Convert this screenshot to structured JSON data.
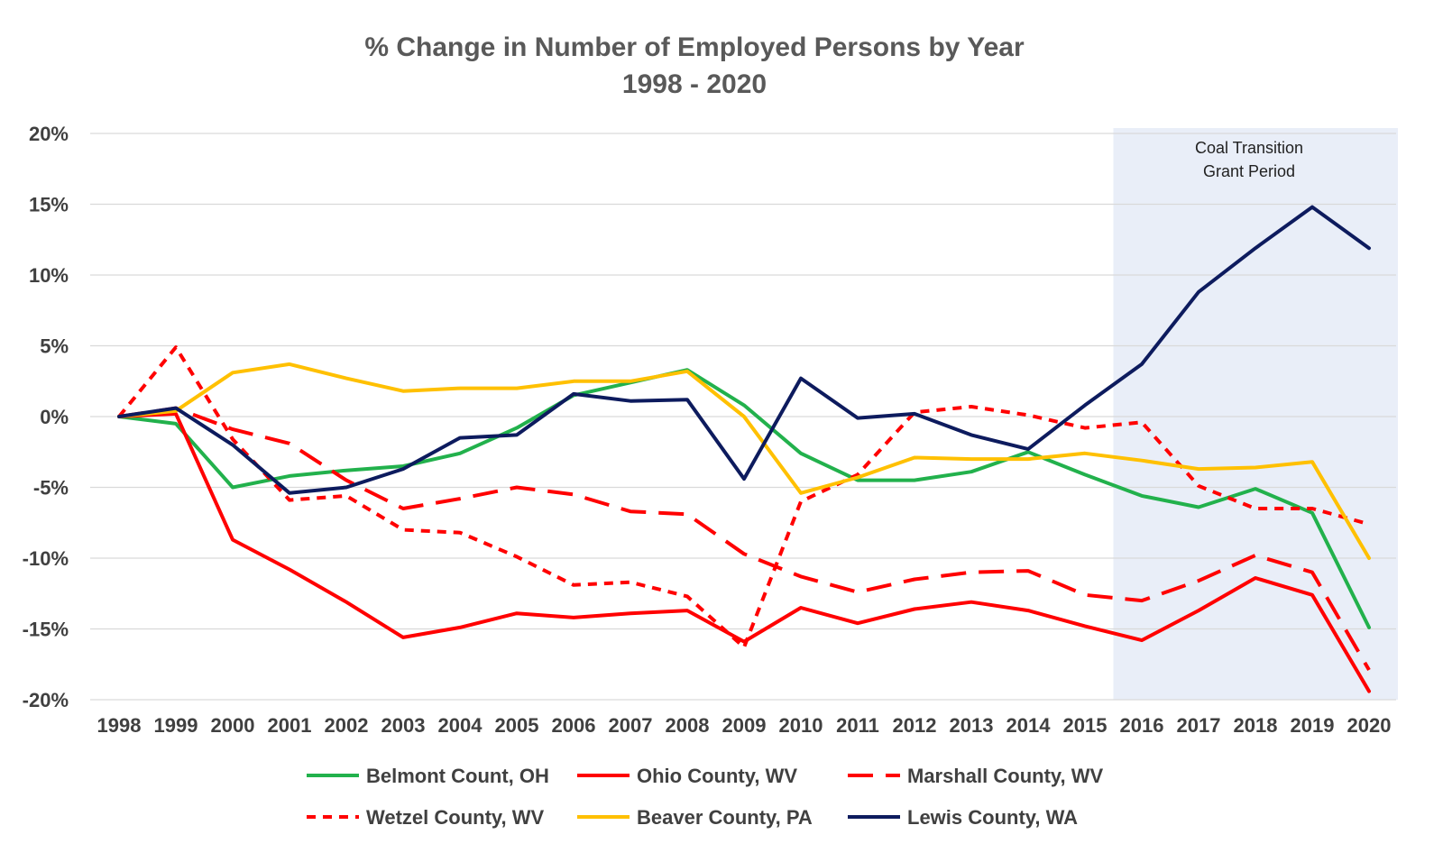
{
  "chart_data": {
    "type": "line",
    "title": "% Change in Number of Employed Persons by Year",
    "subtitle": "1998 - 2020",
    "xlabel": "",
    "ylabel": "",
    "ylim": [
      -20,
      20
    ],
    "yticks": [
      20,
      15,
      10,
      5,
      0,
      -5,
      -10,
      -15,
      -20
    ],
    "ytick_labels": [
      "20%",
      "15%",
      "10%",
      "5%",
      "0%",
      "-5%",
      "-10%",
      "-15%",
      "-20%"
    ],
    "grid": true,
    "legend_position": "bottom",
    "categories": [
      "1998",
      "1999",
      "2000",
      "2001",
      "2002",
      "2003",
      "2004",
      "2005",
      "2006",
      "2007",
      "2008",
      "2009",
      "2010",
      "2011",
      "2012",
      "2013",
      "2014",
      "2015",
      "2016",
      "2017",
      "2018",
      "2019",
      "2020"
    ],
    "shaded_region": {
      "from": "2015.5",
      "to": "2020",
      "label_line1": "Coal Transition",
      "label_line2": "Grant Period",
      "color": "#e9eef8"
    },
    "series": [
      {
        "name": "Belmont Count, OH",
        "color": "#22b14c",
        "dash": "solid",
        "values": [
          0,
          -0.5,
          -5.0,
          -4.2,
          -3.8,
          -3.5,
          -2.6,
          -0.8,
          1.5,
          2.4,
          3.3,
          0.8,
          -2.6,
          -4.5,
          -4.5,
          -3.9,
          -2.5,
          -4.1,
          -5.6,
          -6.4,
          -5.1,
          -6.8,
          -14.9
        ]
      },
      {
        "name": "Ohio County, WV",
        "color": "#ff0000",
        "dash": "solid",
        "values": [
          0,
          0.2,
          -8.7,
          -10.8,
          -13.1,
          -15.6,
          -14.9,
          -13.9,
          -14.2,
          -13.9,
          -13.7,
          -15.9,
          -13.5,
          -14.6,
          -13.6,
          -13.1,
          -13.7,
          -14.8,
          -15.8,
          -13.7,
          -11.4,
          -12.6,
          -19.4
        ]
      },
      {
        "name": "Marshall County, WV",
        "color": "#ff0000",
        "dash": "long",
        "values": [
          0,
          0.6,
          -0.9,
          -1.9,
          -4.5,
          -6.5,
          -5.8,
          -5.0,
          -5.5,
          -6.7,
          -6.9,
          -9.7,
          -11.3,
          -12.4,
          -11.5,
          -11.0,
          -10.9,
          -12.6,
          -13.0,
          -11.6,
          -9.8,
          -11.0,
          -17.9
        ]
      },
      {
        "name": "Wetzel County, WV",
        "color": "#ff0000",
        "dash": "short",
        "values": [
          0,
          4.9,
          -1.6,
          -5.9,
          -5.6,
          -8.0,
          -8.2,
          -9.9,
          -11.9,
          -11.7,
          -12.7,
          -16.3,
          -6.0,
          -4.1,
          0.3,
          0.7,
          0.1,
          -0.8,
          -0.4,
          -4.9,
          -6.5,
          -6.5,
          -7.6
        ]
      },
      {
        "name": "Beaver County, PA",
        "color": "#ffc000",
        "dash": "solid",
        "values": [
          0,
          0.4,
          3.1,
          3.7,
          2.7,
          1.8,
          2.0,
          2.0,
          2.5,
          2.5,
          3.2,
          0.0,
          -5.4,
          -4.3,
          -2.9,
          -3.0,
          -3.0,
          -2.6,
          -3.1,
          -3.7,
          -3.6,
          -3.2,
          -10.0
        ]
      },
      {
        "name": "Lewis County, WA",
        "color": "#0d1b5e",
        "dash": "solid",
        "values": [
          0,
          0.6,
          -2.0,
          -5.4,
          -5.0,
          -3.7,
          -1.5,
          -1.3,
          1.6,
          1.1,
          1.2,
          -4.4,
          2.7,
          -0.1,
          0.2,
          -1.3,
          -2.3,
          0.8,
          3.7,
          8.8,
          11.9,
          14.8,
          11.9
        ]
      }
    ]
  }
}
